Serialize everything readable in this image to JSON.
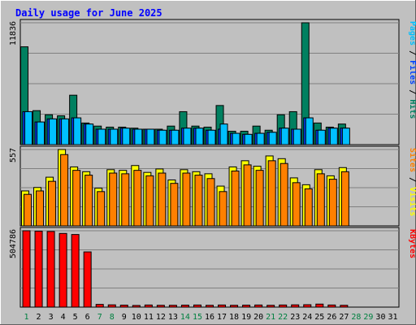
{
  "chart_data": {
    "type": "bar",
    "title": "Daily usage for June 2025",
    "x": [
      "1",
      "2",
      "3",
      "4",
      "5",
      "6",
      "7",
      "8",
      "9",
      "10",
      "11",
      "12",
      "13",
      "14",
      "15",
      "16",
      "17",
      "18",
      "19",
      "20",
      "21",
      "22",
      "23",
      "24",
      "25",
      "26",
      "27",
      "28",
      "29",
      "30",
      "31"
    ],
    "x_label_colors": [
      "#008040",
      "#000000",
      "#000000",
      "#000000",
      "#000000",
      "#000000",
      "#008040",
      "#008040",
      "#000000",
      "#000000",
      "#000000",
      "#000000",
      "#000000",
      "#008040",
      "#008040",
      "#000000",
      "#000000",
      "#000000",
      "#000000",
      "#000000",
      "#008040",
      "#008040",
      "#000000",
      "#000000",
      "#000000",
      "#000000",
      "#000000",
      "#008040",
      "#008040",
      "#000000",
      "#000000"
    ],
    "panels": [
      {
        "id": "hits-files-pages",
        "ymax_label": "11836",
        "ymax": 11836,
        "legend": [
          {
            "text": "Pages",
            "color": "#00c0ff"
          },
          {
            "text": " / ",
            "color": "#000000"
          },
          {
            "text": "Files",
            "color": "#0040ff"
          },
          {
            "text": " / ",
            "color": "#000000"
          },
          {
            "text": "Hits",
            "color": "#008060"
          }
        ],
        "series": [
          {
            "name": "Hits",
            "color": "#008060",
            "values": [
              9500,
              3300,
              2900,
              2800,
              4800,
              2100,
              1800,
              1700,
              1700,
              1600,
              1500,
              1500,
              1800,
              3200,
              1800,
              1700,
              3800,
              1300,
              1300,
              1800,
              1400,
              2900,
              3200,
              11836,
              2100,
              1700,
              2000
            ]
          },
          {
            "name": "Files",
            "color": "#0040ff",
            "values": [
              3200,
              2200,
              2500,
              2500,
              2600,
              2000,
              1500,
              1500,
              1600,
              1500,
              1500,
              1400,
              1400,
              1600,
              1600,
              1400,
              1500,
              1100,
              1000,
              1100,
              1200,
              1600,
              1500,
              2600,
              1400,
              1600,
              1600
            ]
          },
          {
            "name": "Pages",
            "color": "#00c0ff",
            "values": [
              3200,
              2200,
              2500,
              2500,
              2600,
              2000,
              1500,
              1500,
              1600,
              1500,
              1500,
              1400,
              1400,
              1600,
              1600,
              1400,
              2000,
              1100,
              1000,
              1100,
              1200,
              1600,
              1500,
              2600,
              1400,
              1600,
              1600
            ]
          }
        ]
      },
      {
        "id": "visits-sites",
        "ymax_label": "557",
        "ymax": 557,
        "legend": [
          {
            "text": "Sites",
            "color": "#ff8000"
          },
          {
            "text": " / ",
            "color": "#000000"
          },
          {
            "text": "Visits",
            "color": "#ffff00"
          }
        ],
        "series": [
          {
            "name": "Visits",
            "color": "#ffff00",
            "values": [
              255,
              280,
              355,
              557,
              430,
              395,
              275,
              410,
              405,
              440,
              390,
              415,
              335,
              410,
              395,
              380,
              290,
              430,
              475,
              435,
              510,
              490,
              350,
              300,
              410,
              365,
              425
            ]
          },
          {
            "name": "Sites",
            "color": "#ff8000",
            "values": [
              230,
              255,
              325,
              520,
              405,
              370,
              250,
              385,
              380,
              405,
              365,
              385,
              310,
              385,
              370,
              345,
              250,
              400,
              445,
              405,
              475,
              455,
              315,
              270,
              380,
              340,
              395
            ]
          }
        ]
      },
      {
        "id": "kbytes",
        "ymax_label": "504786",
        "ymax": 504786,
        "legend": [
          {
            "text": "KBytes",
            "color": "#ff0000"
          }
        ],
        "series": [
          {
            "name": "KBytes",
            "color": "#ff0000",
            "values": [
              504786,
              502000,
              500000,
              487000,
              480000,
              365000,
              18000,
              15000,
              13000,
              11000,
              14000,
              12000,
              12000,
              13000,
              14000,
              12000,
              14000,
              12000,
              13000,
              14000,
              12000,
              14000,
              15000,
              16000,
              20000,
              14000,
              12000
            ]
          }
        ]
      }
    ]
  }
}
